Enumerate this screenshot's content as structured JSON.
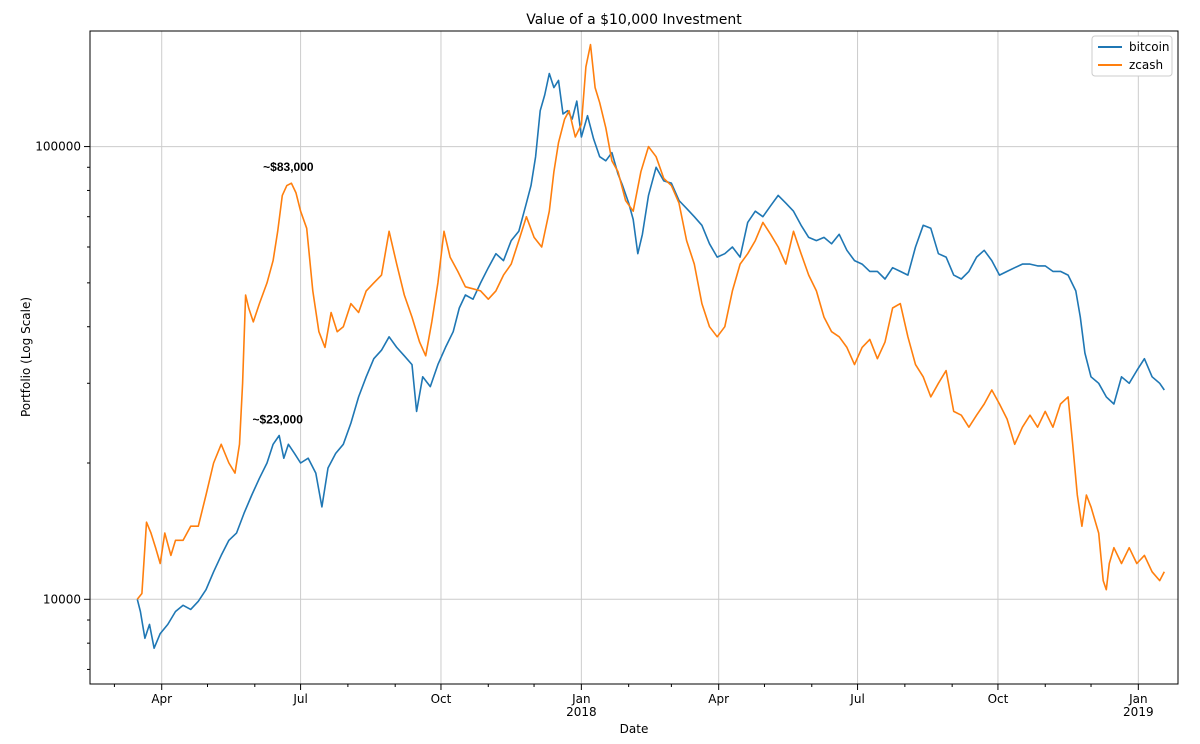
{
  "chart_data": {
    "type": "line",
    "title": "Value of a $10,000 Investment",
    "xlabel": "Date",
    "ylabel": "Portfolio (Log Scale)",
    "yscale": "log",
    "ylim": [
      6500,
      180000
    ],
    "xlim": [
      -16,
      697
    ],
    "x_unit": "days since 2017-03-01",
    "yticks": [
      {
        "value": 10000,
        "label": "10000"
      },
      {
        "value": 100000,
        "label": "100000"
      }
    ],
    "xticks": [
      {
        "day": 31,
        "label": "Apr",
        "sub": ""
      },
      {
        "day": 122,
        "label": "Jul",
        "sub": ""
      },
      {
        "day": 214,
        "label": "Oct",
        "sub": ""
      },
      {
        "day": 306,
        "label": "Jan",
        "sub": "2018"
      },
      {
        "day": 396,
        "label": "Apr",
        "sub": ""
      },
      {
        "day": 487,
        "label": "Jul",
        "sub": ""
      },
      {
        "day": 579,
        "label": "Oct",
        "sub": ""
      },
      {
        "day": 671,
        "label": "Jan",
        "sub": "2019"
      }
    ],
    "legend": {
      "position": "top-right",
      "entries": [
        "bitcoin",
        "zcash"
      ]
    },
    "series": [
      {
        "name": "bitcoin",
        "color": "#1f77b4",
        "points": [
          [
            15,
            10000
          ],
          [
            17,
            9400
          ],
          [
            20,
            8200
          ],
          [
            23,
            8800
          ],
          [
            26,
            7800
          ],
          [
            30,
            8400
          ],
          [
            35,
            8800
          ],
          [
            40,
            9400
          ],
          [
            45,
            9700
          ],
          [
            50,
            9500
          ],
          [
            55,
            9900
          ],
          [
            60,
            10500
          ],
          [
            65,
            11500
          ],
          [
            70,
            12500
          ],
          [
            75,
            13500
          ],
          [
            80,
            14000
          ],
          [
            85,
            15500
          ],
          [
            90,
            17000
          ],
          [
            95,
            18500
          ],
          [
            100,
            20000
          ],
          [
            104,
            22000
          ],
          [
            108,
            23000
          ],
          [
            111,
            20500
          ],
          [
            114,
            22000
          ],
          [
            118,
            21000
          ],
          [
            122,
            20000
          ],
          [
            127,
            20500
          ],
          [
            132,
            19000
          ],
          [
            136,
            16000
          ],
          [
            140,
            19500
          ],
          [
            145,
            21000
          ],
          [
            150,
            22000
          ],
          [
            155,
            24500
          ],
          [
            160,
            28000
          ],
          [
            165,
            31000
          ],
          [
            170,
            34000
          ],
          [
            175,
            35500
          ],
          [
            180,
            38000
          ],
          [
            185,
            36000
          ],
          [
            190,
            34500
          ],
          [
            195,
            33000
          ],
          [
            198,
            26000
          ],
          [
            202,
            31000
          ],
          [
            207,
            29500
          ],
          [
            212,
            33000
          ],
          [
            217,
            36000
          ],
          [
            222,
            39000
          ],
          [
            226,
            44000
          ],
          [
            230,
            47000
          ],
          [
            235,
            46000
          ],
          [
            240,
            50000
          ],
          [
            245,
            54000
          ],
          [
            250,
            58000
          ],
          [
            255,
            56000
          ],
          [
            260,
            62000
          ],
          [
            265,
            65000
          ],
          [
            270,
            75000
          ],
          [
            273,
            82000
          ],
          [
            276,
            95000
          ],
          [
            279,
            120000
          ],
          [
            282,
            130000
          ],
          [
            285,
            145000
          ],
          [
            288,
            135000
          ],
          [
            291,
            140000
          ],
          [
            294,
            118000
          ],
          [
            297,
            120000
          ],
          [
            300,
            115000
          ],
          [
            303,
            126000
          ],
          [
            306,
            105000
          ],
          [
            310,
            117000
          ],
          [
            314,
            104000
          ],
          [
            318,
            95000
          ],
          [
            322,
            93000
          ],
          [
            326,
            97000
          ],
          [
            330,
            87000
          ],
          [
            333,
            82000
          ],
          [
            337,
            75000
          ],
          [
            340,
            69000
          ],
          [
            343,
            58000
          ],
          [
            346,
            64000
          ],
          [
            350,
            78000
          ],
          [
            355,
            90000
          ],
          [
            360,
            84000
          ],
          [
            365,
            83000
          ],
          [
            370,
            76000
          ],
          [
            375,
            73000
          ],
          [
            380,
            70000
          ],
          [
            385,
            67000
          ],
          [
            390,
            61000
          ],
          [
            395,
            57000
          ],
          [
            400,
            58000
          ],
          [
            405,
            60000
          ],
          [
            410,
            57000
          ],
          [
            415,
            68000
          ],
          [
            420,
            72000
          ],
          [
            425,
            70000
          ],
          [
            430,
            74000
          ],
          [
            435,
            78000
          ],
          [
            440,
            75000
          ],
          [
            445,
            72000
          ],
          [
            450,
            67000
          ],
          [
            455,
            63000
          ],
          [
            460,
            62000
          ],
          [
            465,
            63000
          ],
          [
            470,
            61000
          ],
          [
            475,
            64000
          ],
          [
            480,
            59000
          ],
          [
            485,
            56000
          ],
          [
            490,
            55000
          ],
          [
            495,
            53000
          ],
          [
            500,
            53000
          ],
          [
            505,
            51000
          ],
          [
            510,
            54000
          ],
          [
            515,
            53000
          ],
          [
            520,
            52000
          ],
          [
            525,
            60000
          ],
          [
            530,
            67000
          ],
          [
            535,
            66000
          ],
          [
            540,
            58000
          ],
          [
            545,
            57000
          ],
          [
            550,
            52000
          ],
          [
            555,
            51000
          ],
          [
            560,
            53000
          ],
          [
            565,
            57000
          ],
          [
            570,
            59000
          ],
          [
            575,
            56000
          ],
          [
            580,
            52000
          ],
          [
            585,
            53000
          ],
          [
            590,
            54000
          ],
          [
            595,
            55000
          ],
          [
            600,
            55000
          ],
          [
            605,
            54500
          ],
          [
            610,
            54500
          ],
          [
            615,
            53000
          ],
          [
            620,
            53000
          ],
          [
            625,
            52000
          ],
          [
            630,
            48000
          ],
          [
            633,
            42000
          ],
          [
            636,
            35000
          ],
          [
            640,
            31000
          ],
          [
            645,
            30000
          ],
          [
            650,
            28000
          ],
          [
            655,
            27000
          ],
          [
            660,
            31000
          ],
          [
            665,
            30000
          ],
          [
            670,
            32000
          ],
          [
            675,
            34000
          ],
          [
            680,
            31000
          ],
          [
            685,
            30000
          ],
          [
            688,
            29000
          ]
        ]
      },
      {
        "name": "zcash",
        "color": "#ff7f0e",
        "points": [
          [
            15,
            10000
          ],
          [
            18,
            10300
          ],
          [
            21,
            14800
          ],
          [
            24,
            14000
          ],
          [
            27,
            13000
          ],
          [
            30,
            12000
          ],
          [
            33,
            14000
          ],
          [
            37,
            12500
          ],
          [
            40,
            13500
          ],
          [
            45,
            13500
          ],
          [
            50,
            14500
          ],
          [
            55,
            14500
          ],
          [
            60,
            17000
          ],
          [
            65,
            20000
          ],
          [
            70,
            22000
          ],
          [
            75,
            20000
          ],
          [
            79,
            19000
          ],
          [
            82,
            22000
          ],
          [
            84,
            30000
          ],
          [
            86,
            47000
          ],
          [
            88,
            44000
          ],
          [
            91,
            41000
          ],
          [
            95,
            45000
          ],
          [
            100,
            50000
          ],
          [
            104,
            56000
          ],
          [
            107,
            65000
          ],
          [
            110,
            78000
          ],
          [
            113,
            82000
          ],
          [
            116,
            83000
          ],
          [
            119,
            79000
          ],
          [
            122,
            72000
          ],
          [
            126,
            66000
          ],
          [
            130,
            48000
          ],
          [
            134,
            39000
          ],
          [
            138,
            36000
          ],
          [
            142,
            43000
          ],
          [
            146,
            39000
          ],
          [
            150,
            40000
          ],
          [
            155,
            45000
          ],
          [
            160,
            43000
          ],
          [
            165,
            48000
          ],
          [
            170,
            50000
          ],
          [
            175,
            52000
          ],
          [
            180,
            65000
          ],
          [
            185,
            55000
          ],
          [
            190,
            47000
          ],
          [
            195,
            42000
          ],
          [
            200,
            37000
          ],
          [
            204,
            34500
          ],
          [
            208,
            41000
          ],
          [
            212,
            50000
          ],
          [
            216,
            65000
          ],
          [
            220,
            57000
          ],
          [
            225,
            53000
          ],
          [
            230,
            49000
          ],
          [
            235,
            48500
          ],
          [
            240,
            48000
          ],
          [
            245,
            46000
          ],
          [
            250,
            48000
          ],
          [
            255,
            52000
          ],
          [
            260,
            55000
          ],
          [
            265,
            62000
          ],
          [
            270,
            70000
          ],
          [
            275,
            63000
          ],
          [
            280,
            60000
          ],
          [
            285,
            72000
          ],
          [
            288,
            88000
          ],
          [
            291,
            102000
          ],
          [
            295,
            115000
          ],
          [
            298,
            120000
          ],
          [
            302,
            105000
          ],
          [
            306,
            112000
          ],
          [
            309,
            150000
          ],
          [
            312,
            168000
          ],
          [
            315,
            135000
          ],
          [
            318,
            125000
          ],
          [
            322,
            110000
          ],
          [
            326,
            93000
          ],
          [
            330,
            88000
          ],
          [
            335,
            76000
          ],
          [
            340,
            72000
          ],
          [
            345,
            88000
          ],
          [
            350,
            100000
          ],
          [
            355,
            95000
          ],
          [
            360,
            85000
          ],
          [
            365,
            82000
          ],
          [
            370,
            75000
          ],
          [
            375,
            62000
          ],
          [
            380,
            55000
          ],
          [
            385,
            45000
          ],
          [
            390,
            40000
          ],
          [
            395,
            38000
          ],
          [
            400,
            40000
          ],
          [
            405,
            48000
          ],
          [
            410,
            55000
          ],
          [
            415,
            58000
          ],
          [
            420,
            62000
          ],
          [
            425,
            68000
          ],
          [
            430,
            64000
          ],
          [
            435,
            60000
          ],
          [
            440,
            55000
          ],
          [
            445,
            65000
          ],
          [
            450,
            58000
          ],
          [
            455,
            52000
          ],
          [
            460,
            48000
          ],
          [
            465,
            42000
          ],
          [
            470,
            39000
          ],
          [
            475,
            38000
          ],
          [
            480,
            36000
          ],
          [
            485,
            33000
          ],
          [
            490,
            36000
          ],
          [
            495,
            37500
          ],
          [
            500,
            34000
          ],
          [
            505,
            37000
          ],
          [
            510,
            44000
          ],
          [
            515,
            45000
          ],
          [
            520,
            38000
          ],
          [
            525,
            33000
          ],
          [
            530,
            31000
          ],
          [
            535,
            28000
          ],
          [
            540,
            30000
          ],
          [
            545,
            32000
          ],
          [
            550,
            26000
          ],
          [
            555,
            25500
          ],
          [
            560,
            24000
          ],
          [
            565,
            25500
          ],
          [
            570,
            27000
          ],
          [
            575,
            29000
          ],
          [
            580,
            27000
          ],
          [
            585,
            25000
          ],
          [
            590,
            22000
          ],
          [
            595,
            24000
          ],
          [
            600,
            25500
          ],
          [
            605,
            24000
          ],
          [
            610,
            26000
          ],
          [
            615,
            24000
          ],
          [
            620,
            27000
          ],
          [
            625,
            28000
          ],
          [
            628,
            22000
          ],
          [
            631,
            17000
          ],
          [
            634,
            14500
          ],
          [
            637,
            17000
          ],
          [
            640,
            16000
          ],
          [
            645,
            14000
          ],
          [
            648,
            11000
          ],
          [
            650,
            10500
          ],
          [
            652,
            12000
          ],
          [
            655,
            13000
          ],
          [
            660,
            12000
          ],
          [
            665,
            13000
          ],
          [
            670,
            12000
          ],
          [
            675,
            12500
          ],
          [
            680,
            11500
          ],
          [
            685,
            11000
          ],
          [
            688,
            11500
          ]
        ]
      }
    ],
    "annotations": [
      {
        "text": "~$83,000",
        "day": 114,
        "value": 83000,
        "series": "zcash"
      },
      {
        "text": "~$23,000",
        "day": 107,
        "value": 23000,
        "series": "bitcoin"
      }
    ]
  }
}
